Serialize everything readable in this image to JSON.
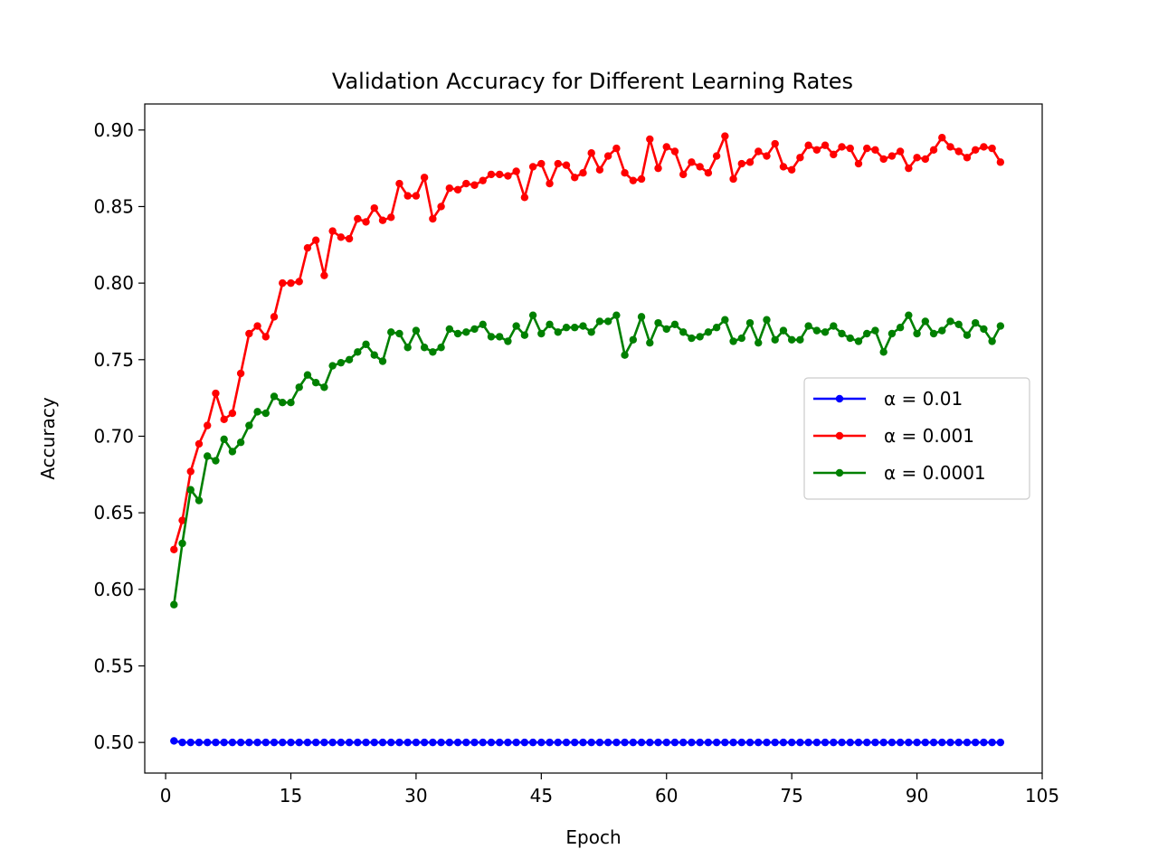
{
  "chart_data": {
    "type": "line",
    "title": "Validation Accuracy for Different Learning Rates",
    "xlabel": "Epoch",
    "ylabel": "Accuracy",
    "xlim": [
      -2.5,
      105
    ],
    "ylim": [
      0.48,
      0.917
    ],
    "xticks": [
      0,
      15,
      30,
      45,
      60,
      75,
      90,
      105
    ],
    "yticks": [
      0.5,
      0.55,
      0.6,
      0.65,
      0.7,
      0.75,
      0.8,
      0.85,
      0.9
    ],
    "xtick_labels": [
      "0",
      "15",
      "30",
      "45",
      "60",
      "75",
      "90",
      "105"
    ],
    "ytick_labels": [
      "0.50",
      "0.55",
      "0.60",
      "0.65",
      "0.70",
      "0.75",
      "0.80",
      "0.85",
      "0.90"
    ],
    "legend_position": "center-right",
    "grid": false,
    "x_start": 1,
    "series": [
      {
        "name": "α = 0.01",
        "color": "#0000ff",
        "values": [
          0.501,
          0.5,
          0.5,
          0.5,
          0.5,
          0.5,
          0.5,
          0.5,
          0.5,
          0.5,
          0.5,
          0.5,
          0.5,
          0.5,
          0.5,
          0.5,
          0.5,
          0.5,
          0.5,
          0.5,
          0.5,
          0.5,
          0.5,
          0.5,
          0.5,
          0.5,
          0.5,
          0.5,
          0.5,
          0.5,
          0.5,
          0.5,
          0.5,
          0.5,
          0.5,
          0.5,
          0.5,
          0.5,
          0.5,
          0.5,
          0.5,
          0.5,
          0.5,
          0.5,
          0.5,
          0.5,
          0.5,
          0.5,
          0.5,
          0.5,
          0.5,
          0.5,
          0.5,
          0.5,
          0.5,
          0.5,
          0.5,
          0.5,
          0.5,
          0.5,
          0.5,
          0.5,
          0.5,
          0.5,
          0.5,
          0.5,
          0.5,
          0.5,
          0.5,
          0.5,
          0.5,
          0.5,
          0.5,
          0.5,
          0.5,
          0.5,
          0.5,
          0.5,
          0.5,
          0.5,
          0.5,
          0.5,
          0.5,
          0.5,
          0.5,
          0.5,
          0.5,
          0.5,
          0.5,
          0.5,
          0.5,
          0.5,
          0.5,
          0.5,
          0.5,
          0.5,
          0.5,
          0.5,
          0.5,
          0.5
        ]
      },
      {
        "name": "α = 0.001",
        "color": "#ff0000",
        "values": [
          0.626,
          0.645,
          0.677,
          0.695,
          0.707,
          0.728,
          0.711,
          0.715,
          0.741,
          0.767,
          0.772,
          0.765,
          0.778,
          0.8,
          0.8,
          0.801,
          0.823,
          0.828,
          0.805,
          0.834,
          0.83,
          0.829,
          0.842,
          0.84,
          0.849,
          0.841,
          0.843,
          0.865,
          0.857,
          0.857,
          0.869,
          0.842,
          0.85,
          0.862,
          0.861,
          0.865,
          0.864,
          0.867,
          0.871,
          0.871,
          0.87,
          0.873,
          0.856,
          0.876,
          0.878,
          0.865,
          0.878,
          0.877,
          0.869,
          0.872,
          0.885,
          0.874,
          0.883,
          0.888,
          0.872,
          0.867,
          0.868,
          0.894,
          0.875,
          0.889,
          0.886,
          0.871,
          0.879,
          0.876,
          0.872,
          0.883,
          0.896,
          0.868,
          0.878,
          0.879,
          0.886,
          0.883,
          0.891,
          0.876,
          0.874,
          0.882,
          0.89,
          0.887,
          0.89,
          0.884,
          0.889,
          0.888,
          0.878,
          0.888,
          0.887,
          0.881,
          0.883,
          0.886,
          0.875,
          0.882,
          0.881,
          0.887,
          0.895,
          0.889,
          0.886,
          0.882,
          0.887,
          0.889,
          0.888,
          0.879
        ]
      },
      {
        "name": "α = 0.0001",
        "color": "#008000",
        "values": [
          0.59,
          0.63,
          0.665,
          0.658,
          0.687,
          0.684,
          0.698,
          0.69,
          0.696,
          0.707,
          0.716,
          0.715,
          0.726,
          0.722,
          0.722,
          0.732,
          0.74,
          0.735,
          0.732,
          0.746,
          0.748,
          0.75,
          0.755,
          0.76,
          0.753,
          0.749,
          0.768,
          0.767,
          0.758,
          0.769,
          0.758,
          0.755,
          0.758,
          0.77,
          0.767,
          0.768,
          0.77,
          0.773,
          0.765,
          0.765,
          0.762,
          0.772,
          0.766,
          0.779,
          0.767,
          0.773,
          0.768,
          0.771,
          0.771,
          0.772,
          0.768,
          0.775,
          0.775,
          0.779,
          0.753,
          0.763,
          0.778,
          0.761,
          0.774,
          0.77,
          0.773,
          0.768,
          0.764,
          0.765,
          0.768,
          0.771,
          0.776,
          0.762,
          0.764,
          0.774,
          0.761,
          0.776,
          0.763,
          0.769,
          0.763,
          0.763,
          0.772,
          0.769,
          0.768,
          0.772,
          0.767,
          0.764,
          0.762,
          0.767,
          0.769,
          0.755,
          0.767,
          0.771,
          0.779,
          0.767,
          0.775,
          0.767,
          0.769,
          0.775,
          0.773,
          0.766,
          0.774,
          0.77,
          0.762,
          0.772
        ]
      }
    ]
  }
}
